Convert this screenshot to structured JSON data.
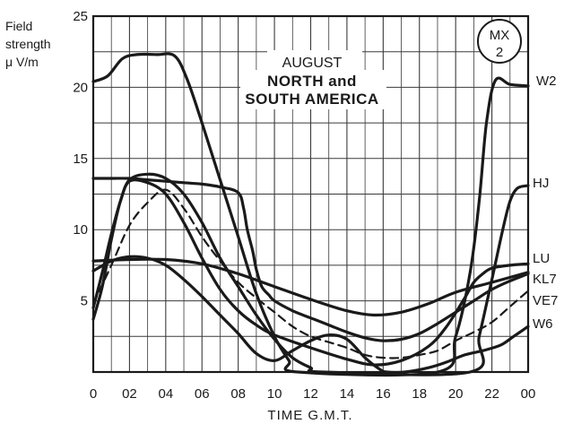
{
  "chart_data": {
    "type": "line",
    "title_lines": [
      "AUGUST",
      "NORTH and",
      "SOUTH AMERICA"
    ],
    "badge_lines": [
      "MX",
      "2"
    ],
    "ylabel_lines": [
      "Field",
      "strength",
      "μ V/m"
    ],
    "xlabel": "TIME  G.M.T.",
    "x_ticks": [
      "0",
      "02",
      "04",
      "06",
      "08",
      "10",
      "12",
      "14",
      "16",
      "18",
      "20",
      "22",
      "00"
    ],
    "y_ticks": [
      "5",
      "10",
      "15",
      "20",
      "25"
    ],
    "xlim": [
      0,
      24
    ],
    "ylim": [
      0,
      25
    ],
    "grid": true,
    "series": [
      {
        "name": "W2",
        "style": "solid",
        "x": [
          0,
          0.8,
          1.6,
          2.4,
          3.5,
          4.5,
          5.2,
          6.0,
          7.0,
          8.0,
          9.0,
          10.0,
          10.8,
          11.3,
          19.0,
          20.0,
          20.8,
          21.3,
          21.7,
          22.2,
          23.0,
          24.0
        ],
        "y": [
          20.4,
          20.8,
          22.0,
          22.3,
          22.3,
          22.2,
          20.5,
          17.5,
          13.5,
          9.5,
          5.5,
          2.5,
          0.8,
          0,
          0,
          2.5,
          7.0,
          12.0,
          17.5,
          20.5,
          20.2,
          20.1
        ]
      },
      {
        "name": "HJ",
        "style": "solid",
        "x": [
          0,
          0.5,
          1.0,
          1.5,
          2.0,
          3.0,
          4.0,
          5.0,
          6.0,
          7.0,
          8.0,
          9.0,
          10.0,
          11.0,
          12.0,
          12.7,
          20.8,
          21.3,
          22.0,
          22.6,
          23.0,
          23.4,
          24.0
        ],
        "y": [
          4.5,
          7.0,
          9.7,
          12.0,
          13.5,
          13.9,
          13.6,
          12.5,
          10.5,
          8.0,
          6.0,
          4.0,
          2.3,
          1.0,
          0.3,
          0,
          0,
          2.5,
          6.5,
          10.0,
          12.0,
          12.9,
          13.1
        ]
      },
      {
        "name": "LU",
        "style": "solid",
        "x": [
          0,
          2.0,
          4.0,
          6.0,
          8.0,
          10.0,
          12.0,
          14.0,
          15.5,
          17.0,
          18.5,
          20.0,
          22.0,
          24.0
        ],
        "y": [
          7.8,
          7.9,
          7.9,
          7.6,
          6.9,
          6.0,
          5.1,
          4.3,
          4.0,
          4.2,
          4.8,
          5.6,
          6.3,
          7.0
        ]
      },
      {
        "name": "KL7",
        "style": "solid",
        "x": [
          0,
          0.5,
          1.0,
          1.5,
          2.0,
          3.0,
          4.0,
          5.0,
          6.0,
          7.0,
          8.0,
          9.0,
          10.0,
          12.0,
          14.0,
          15.5,
          17.0,
          18.5,
          19.5,
          20.5,
          21.0,
          21.5,
          22.0,
          23.0,
          24.0
        ],
        "y": [
          3.7,
          6.0,
          9.3,
          12.0,
          13.4,
          13.3,
          12.5,
          10.5,
          8.0,
          5.8,
          4.3,
          3.3,
          2.6,
          1.7,
          0.9,
          0.5,
          0.8,
          1.8,
          3.2,
          5.2,
          6.3,
          6.9,
          7.3,
          7.5,
          7.6
        ]
      },
      {
        "name": "VE7",
        "style": "dashed",
        "x": [
          0,
          1.0,
          2.0,
          3.0,
          4.0,
          5.0,
          6.0,
          7.0,
          8.0,
          9.0,
          10.0,
          11.0,
          12.0,
          13.0,
          14.0,
          15.0,
          16.0,
          17.0,
          18.0,
          19.0,
          20.0,
          21.0,
          22.0,
          23.0,
          24.0
        ],
        "y": [
          4.8,
          7.5,
          10.3,
          11.9,
          12.8,
          11.5,
          9.5,
          7.8,
          6.3,
          5.2,
          4.2,
          3.2,
          2.5,
          2.1,
          1.7,
          1.2,
          1.0,
          1.0,
          1.2,
          1.5,
          2.2,
          2.8,
          3.5,
          4.6,
          5.7
        ]
      },
      {
        "name": "W6",
        "style": "solid",
        "x": [
          0,
          1.0,
          2.0,
          3.0,
          4.0,
          5.0,
          6.0,
          7.0,
          8.0,
          9.0,
          10.0,
          11.0,
          12.0,
          13.0,
          14.0,
          15.0,
          15.8,
          16.2,
          17.2,
          18.5,
          19.5,
          20.5,
          21.5,
          22.5,
          23.2,
          24.0
        ],
        "y": [
          7.1,
          7.8,
          8.1,
          8.0,
          7.5,
          6.5,
          5.3,
          4.0,
          2.7,
          1.3,
          0.8,
          1.5,
          2.2,
          2.6,
          2.3,
          1.0,
          0.2,
          0,
          0,
          0.3,
          0.7,
          1.2,
          1.5,
          1.9,
          2.5,
          3.2
        ]
      },
      {
        "name": "",
        "style": "solid",
        "x": [
          0,
          1.0,
          2.0,
          3.0,
          4.0,
          5.0,
          6.0,
          7.0,
          8.0,
          8.3,
          8.5,
          8.8,
          9.0,
          9.3,
          9.7,
          10.0,
          11.0,
          12.0,
          13.0,
          14.0,
          15.0,
          16.0,
          17.0,
          18.0,
          19.0,
          20.0,
          21.0,
          22.0,
          23.0,
          24.0
        ],
        "y": [
          13.6,
          13.6,
          13.6,
          13.5,
          13.4,
          13.3,
          13.2,
          13.0,
          12.6,
          11.5,
          10.0,
          8.5,
          7.2,
          6.0,
          5.4,
          5.0,
          4.3,
          3.8,
          3.3,
          2.8,
          2.4,
          2.2,
          2.3,
          2.7,
          3.4,
          4.2,
          5.0,
          5.8,
          6.4,
          6.9
        ]
      }
    ]
  }
}
